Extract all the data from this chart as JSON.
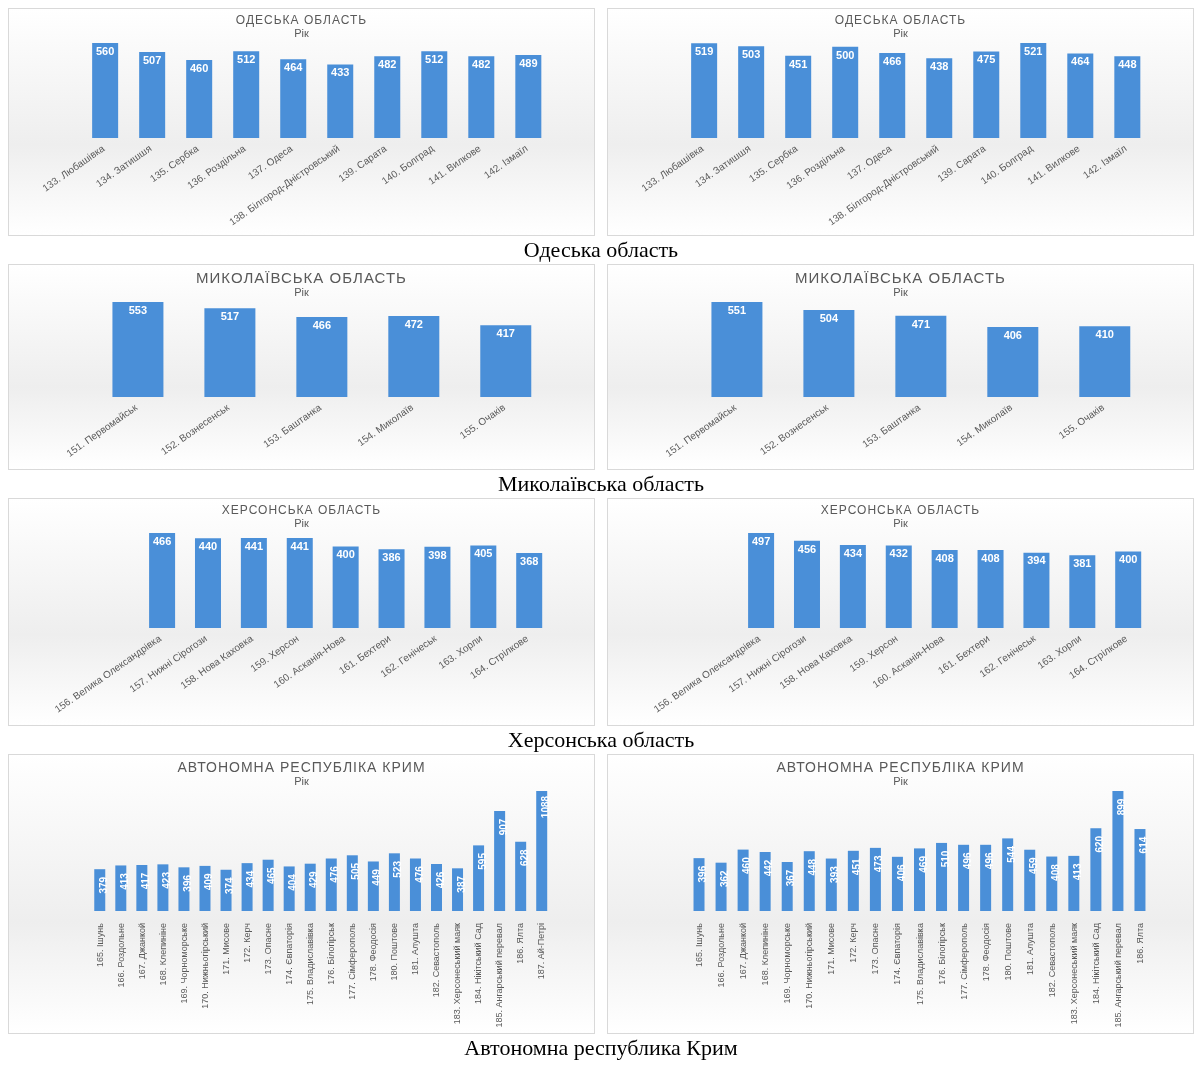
{
  "chart_data": [
    {
      "type": "bar",
      "title": "ОДЕСЬКА ОБЛАСТЬ",
      "subtitle": "Рік",
      "categories": [
        "133. Любашівка",
        "134. Затишшя",
        "135. Сербка",
        "136. Роздільна",
        "137. Одеса",
        "138. Білгород-Дністровський",
        "139. Сарата",
        "140. Болград",
        "141. Вилкове",
        "142. Ізмаїл"
      ],
      "values": [
        560,
        507,
        460,
        512,
        464,
        433,
        482,
        512,
        482,
        489
      ],
      "color": "#4a8fd8",
      "data_labels": true,
      "tick_labels": "x",
      "annotations": [
        "Одеська область"
      ]
    },
    {
      "type": "bar",
      "title": "ОДЕСЬКА ОБЛАСТЬ",
      "subtitle": "Рік",
      "categories": [
        "133. Любашівка",
        "134. Затишшя",
        "135. Сербка",
        "136. Роздільна",
        "137. Одеса",
        "138. Білгород-Дністровський",
        "139. Сарата",
        "140. Болград",
        "141. Вилкове",
        "142. Ізмаїл"
      ],
      "values": [
        519,
        503,
        451,
        500,
        466,
        438,
        475,
        521,
        464,
        448
      ],
      "color": "#4a8fd8",
      "data_labels": true,
      "tick_labels": "x"
    },
    {
      "type": "bar",
      "title": "МИКОЛАЇВСЬКА ОБЛАСТЬ",
      "subtitle": "Рік",
      "categories": [
        "151. Первомайськ",
        "152. Вознесенськ",
        "153. Баштанка",
        "154. Миколаїв",
        "155. Очаків"
      ],
      "values": [
        553,
        517,
        466,
        472,
        417
      ],
      "color": "#4a8fd8",
      "data_labels": true,
      "tick_labels": "x",
      "annotations": [
        "Миколаївська область"
      ]
    },
    {
      "type": "bar",
      "title": "МИКОЛАЇВСЬКА ОБЛАСТЬ",
      "subtitle": "Рік",
      "categories": [
        "151. Первомайськ",
        "152. Вознесенськ",
        "153. Баштанка",
        "154. Миколаїв",
        "155. Очаків"
      ],
      "values": [
        551,
        504,
        471,
        406,
        410
      ],
      "color": "#4a8fd8",
      "data_labels": true,
      "tick_labels": "x"
    },
    {
      "type": "bar",
      "title": "ХЕРСОНСЬКА ОБЛАСТЬ",
      "subtitle": "Рік",
      "categories": [
        "156. Велика Олександрівка",
        "157. Нижні Сірогози",
        "158. Нова Каховка",
        "159. Херсон",
        "160. Асканія-Нова",
        "161. Бехтери",
        "162. Генічеськ",
        "163. Хорли",
        "164. Стрілкове"
      ],
      "values": [
        466,
        440,
        441,
        441,
        400,
        386,
        398,
        405,
        368
      ],
      "color": "#4a8fd8",
      "data_labels": true,
      "tick_labels": "x",
      "annotations": [
        "Херсонська область"
      ]
    },
    {
      "type": "bar",
      "title": "ХЕРСОНСЬКА ОБЛАСТЬ",
      "subtitle": "Рік",
      "categories": [
        "156. Велика Олександрівка",
        "157. Нижні Сірогози",
        "158. Нова Каховка",
        "159. Херсон",
        "160. Асканія-Нова",
        "161. Бехтери",
        "162. Генічеськ",
        "163. Хорли",
        "164. Стрілкове"
      ],
      "values": [
        497,
        456,
        434,
        432,
        408,
        408,
        394,
        381,
        400
      ],
      "color": "#4a8fd8",
      "data_labels": true,
      "tick_labels": "x"
    },
    {
      "type": "bar",
      "title": "АВТОНОМНА РЕСПУБЛІКА КРИМ",
      "subtitle": "Рік",
      "categories": [
        "165. Ішунь",
        "166. Роздольне",
        "167. Джанкой",
        "168. Клепиніне",
        "169. Чорноморське",
        "170. Нижньогірський",
        "171. Мисове",
        "172. Керч",
        "173. Опасне",
        "174. Євпаторія",
        "175. Владиславівка",
        "176. Білогірськ",
        "177. Сімферополь",
        "178. Феодосія",
        "180. Поштове",
        "181. Алушта",
        "182. Севастополь",
        "183. Херсонеський маяк",
        "184. Нікітський Сад",
        "185. Ангарський перевал",
        "186. Ялта",
        "187. Ай-Петрі"
      ],
      "values": [
        379,
        413,
        417,
        423,
        396,
        409,
        374,
        434,
        465,
        404,
        429,
        476,
        505,
        449,
        523,
        476,
        426,
        387,
        595,
        907,
        628,
        1088
      ],
      "color": "#4a8fd8",
      "data_labels": true,
      "tick_labels": "x",
      "annotations": [
        "Автономна республика Крим"
      ]
    },
    {
      "type": "bar",
      "title": "АВТОНОМНА РЕСПУБЛІКА КРИМ",
      "subtitle": "Рік",
      "categories": [
        "165. Ішунь",
        "166. Роздольне",
        "167. Джанкой",
        "168. Клепиніне",
        "169. Чорноморське",
        "170. Нижньогірський",
        "171. Мисове",
        "172. Керч",
        "173. Опасне",
        "174. Євпаторія",
        "175. Владиславівка",
        "176. Білогірськ",
        "177. Сімферополь",
        "178. Феодосія",
        "180. Поштове",
        "181. Алушта",
        "182. Севастополь",
        "183. Херсонеський маяк",
        "184. Нікітський Сад",
        "185. Ангарський перевал",
        "186. Ялта"
      ],
      "values": [
        396,
        362,
        460,
        442,
        367,
        448,
        393,
        451,
        473,
        406,
        469,
        510,
        496,
        496,
        544,
        459,
        408,
        413,
        620,
        899,
        614
      ],
      "color": "#4a8fd8",
      "data_labels": true,
      "tick_labels": "x"
    }
  ]
}
